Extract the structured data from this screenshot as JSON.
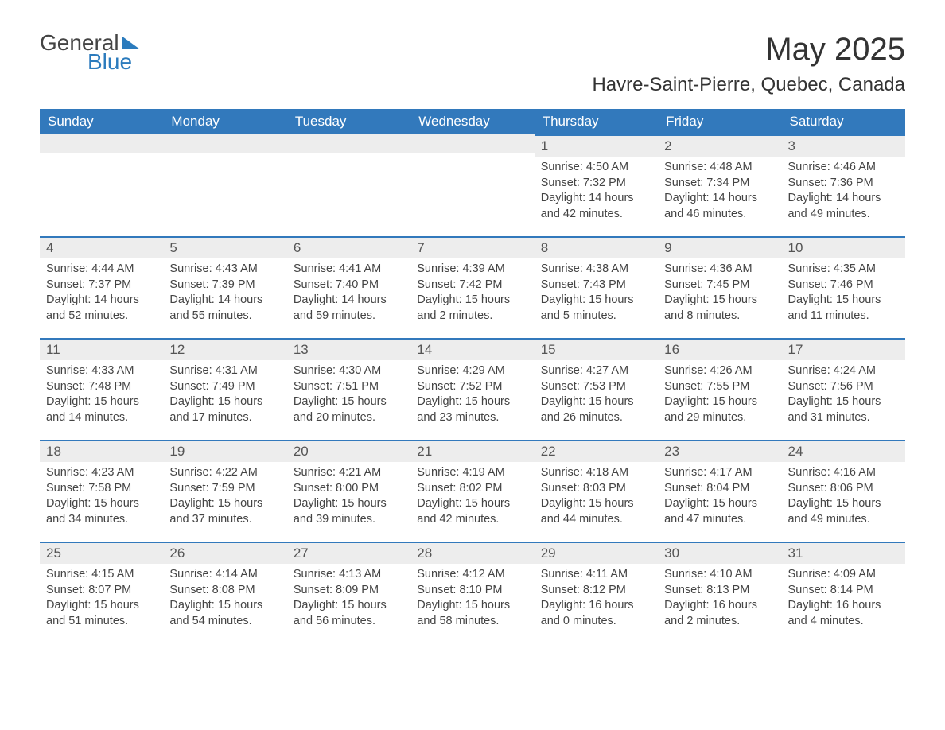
{
  "logo": {
    "text1": "General",
    "text2": "Blue"
  },
  "title": "May 2025",
  "location": "Havre-Saint-Pierre, Quebec, Canada",
  "colors": {
    "header_bg": "#3279bc",
    "header_text": "#ffffff",
    "daynum_bg": "#ededed",
    "rule": "#3279bc",
    "text": "#444444",
    "logo_blue": "#2b7bbd"
  },
  "fonts": {
    "title_size_pt": 30,
    "location_size_pt": 18,
    "header_size_pt": 13,
    "daynum_size_pt": 13,
    "body_size_pt": 11
  },
  "calendar": {
    "type": "table",
    "columns": [
      "Sunday",
      "Monday",
      "Tuesday",
      "Wednesday",
      "Thursday",
      "Friday",
      "Saturday"
    ],
    "weeks": [
      [
        null,
        null,
        null,
        null,
        {
          "day": "1",
          "sunrise": "Sunrise: 4:50 AM",
          "sunset": "Sunset: 7:32 PM",
          "daylight": "Daylight: 14 hours and 42 minutes."
        },
        {
          "day": "2",
          "sunrise": "Sunrise: 4:48 AM",
          "sunset": "Sunset: 7:34 PM",
          "daylight": "Daylight: 14 hours and 46 minutes."
        },
        {
          "day": "3",
          "sunrise": "Sunrise: 4:46 AM",
          "sunset": "Sunset: 7:36 PM",
          "daylight": "Daylight: 14 hours and 49 minutes."
        }
      ],
      [
        {
          "day": "4",
          "sunrise": "Sunrise: 4:44 AM",
          "sunset": "Sunset: 7:37 PM",
          "daylight": "Daylight: 14 hours and 52 minutes."
        },
        {
          "day": "5",
          "sunrise": "Sunrise: 4:43 AM",
          "sunset": "Sunset: 7:39 PM",
          "daylight": "Daylight: 14 hours and 55 minutes."
        },
        {
          "day": "6",
          "sunrise": "Sunrise: 4:41 AM",
          "sunset": "Sunset: 7:40 PM",
          "daylight": "Daylight: 14 hours and 59 minutes."
        },
        {
          "day": "7",
          "sunrise": "Sunrise: 4:39 AM",
          "sunset": "Sunset: 7:42 PM",
          "daylight": "Daylight: 15 hours and 2 minutes."
        },
        {
          "day": "8",
          "sunrise": "Sunrise: 4:38 AM",
          "sunset": "Sunset: 7:43 PM",
          "daylight": "Daylight: 15 hours and 5 minutes."
        },
        {
          "day": "9",
          "sunrise": "Sunrise: 4:36 AM",
          "sunset": "Sunset: 7:45 PM",
          "daylight": "Daylight: 15 hours and 8 minutes."
        },
        {
          "day": "10",
          "sunrise": "Sunrise: 4:35 AM",
          "sunset": "Sunset: 7:46 PM",
          "daylight": "Daylight: 15 hours and 11 minutes."
        }
      ],
      [
        {
          "day": "11",
          "sunrise": "Sunrise: 4:33 AM",
          "sunset": "Sunset: 7:48 PM",
          "daylight": "Daylight: 15 hours and 14 minutes."
        },
        {
          "day": "12",
          "sunrise": "Sunrise: 4:31 AM",
          "sunset": "Sunset: 7:49 PM",
          "daylight": "Daylight: 15 hours and 17 minutes."
        },
        {
          "day": "13",
          "sunrise": "Sunrise: 4:30 AM",
          "sunset": "Sunset: 7:51 PM",
          "daylight": "Daylight: 15 hours and 20 minutes."
        },
        {
          "day": "14",
          "sunrise": "Sunrise: 4:29 AM",
          "sunset": "Sunset: 7:52 PM",
          "daylight": "Daylight: 15 hours and 23 minutes."
        },
        {
          "day": "15",
          "sunrise": "Sunrise: 4:27 AM",
          "sunset": "Sunset: 7:53 PM",
          "daylight": "Daylight: 15 hours and 26 minutes."
        },
        {
          "day": "16",
          "sunrise": "Sunrise: 4:26 AM",
          "sunset": "Sunset: 7:55 PM",
          "daylight": "Daylight: 15 hours and 29 minutes."
        },
        {
          "day": "17",
          "sunrise": "Sunrise: 4:24 AM",
          "sunset": "Sunset: 7:56 PM",
          "daylight": "Daylight: 15 hours and 31 minutes."
        }
      ],
      [
        {
          "day": "18",
          "sunrise": "Sunrise: 4:23 AM",
          "sunset": "Sunset: 7:58 PM",
          "daylight": "Daylight: 15 hours and 34 minutes."
        },
        {
          "day": "19",
          "sunrise": "Sunrise: 4:22 AM",
          "sunset": "Sunset: 7:59 PM",
          "daylight": "Daylight: 15 hours and 37 minutes."
        },
        {
          "day": "20",
          "sunrise": "Sunrise: 4:21 AM",
          "sunset": "Sunset: 8:00 PM",
          "daylight": "Daylight: 15 hours and 39 minutes."
        },
        {
          "day": "21",
          "sunrise": "Sunrise: 4:19 AM",
          "sunset": "Sunset: 8:02 PM",
          "daylight": "Daylight: 15 hours and 42 minutes."
        },
        {
          "day": "22",
          "sunrise": "Sunrise: 4:18 AM",
          "sunset": "Sunset: 8:03 PM",
          "daylight": "Daylight: 15 hours and 44 minutes."
        },
        {
          "day": "23",
          "sunrise": "Sunrise: 4:17 AM",
          "sunset": "Sunset: 8:04 PM",
          "daylight": "Daylight: 15 hours and 47 minutes."
        },
        {
          "day": "24",
          "sunrise": "Sunrise: 4:16 AM",
          "sunset": "Sunset: 8:06 PM",
          "daylight": "Daylight: 15 hours and 49 minutes."
        }
      ],
      [
        {
          "day": "25",
          "sunrise": "Sunrise: 4:15 AM",
          "sunset": "Sunset: 8:07 PM",
          "daylight": "Daylight: 15 hours and 51 minutes."
        },
        {
          "day": "26",
          "sunrise": "Sunrise: 4:14 AM",
          "sunset": "Sunset: 8:08 PM",
          "daylight": "Daylight: 15 hours and 54 minutes."
        },
        {
          "day": "27",
          "sunrise": "Sunrise: 4:13 AM",
          "sunset": "Sunset: 8:09 PM",
          "daylight": "Daylight: 15 hours and 56 minutes."
        },
        {
          "day": "28",
          "sunrise": "Sunrise: 4:12 AM",
          "sunset": "Sunset: 8:10 PM",
          "daylight": "Daylight: 15 hours and 58 minutes."
        },
        {
          "day": "29",
          "sunrise": "Sunrise: 4:11 AM",
          "sunset": "Sunset: 8:12 PM",
          "daylight": "Daylight: 16 hours and 0 minutes."
        },
        {
          "day": "30",
          "sunrise": "Sunrise: 4:10 AM",
          "sunset": "Sunset: 8:13 PM",
          "daylight": "Daylight: 16 hours and 2 minutes."
        },
        {
          "day": "31",
          "sunrise": "Sunrise: 4:09 AM",
          "sunset": "Sunset: 8:14 PM",
          "daylight": "Daylight: 16 hours and 4 minutes."
        }
      ]
    ]
  }
}
